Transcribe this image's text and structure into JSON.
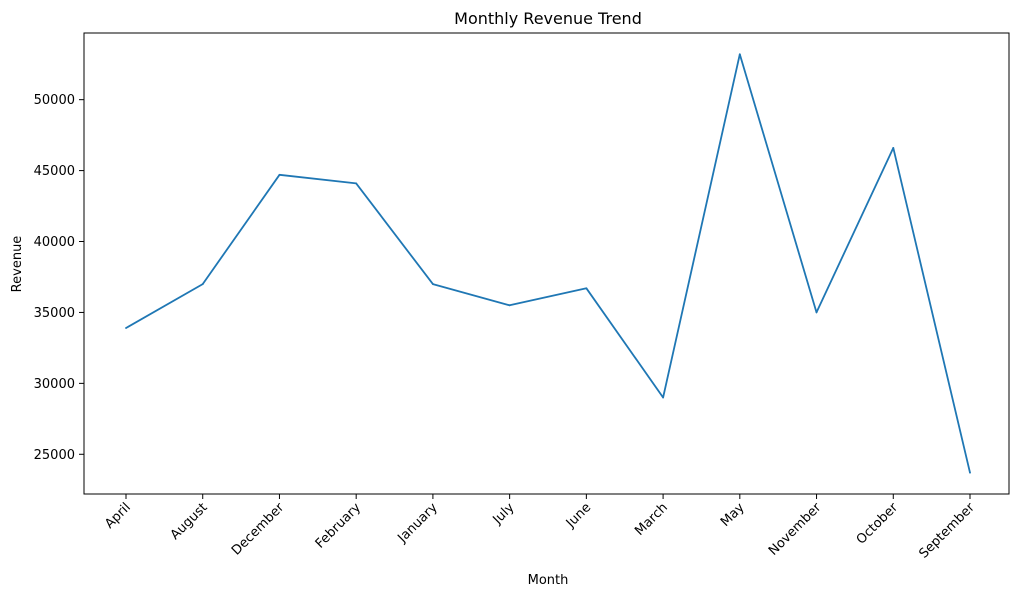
{
  "chart_data": {
    "type": "line",
    "title": "Monthly Revenue Trend",
    "xlabel": "Month",
    "ylabel": "Revenue",
    "categories": [
      "April",
      "August",
      "December",
      "February",
      "January",
      "July",
      "June",
      "March",
      "May",
      "November",
      "October",
      "September"
    ],
    "series": [
      {
        "values": [
          33900,
          37000,
          44700,
          44100,
          37000,
          35500,
          36700,
          29000,
          53200,
          35000,
          46600,
          23700
        ],
        "color": "#1f77b4"
      }
    ],
    "ylim": [
      22200,
      54700
    ],
    "yticks": [
      25000,
      30000,
      35000,
      40000,
      45000,
      50000
    ],
    "ytick_labels": [
      "25000",
      "30000",
      "35000",
      "40000",
      "45000",
      "50000"
    ],
    "grid": false,
    "legend": "none"
  }
}
